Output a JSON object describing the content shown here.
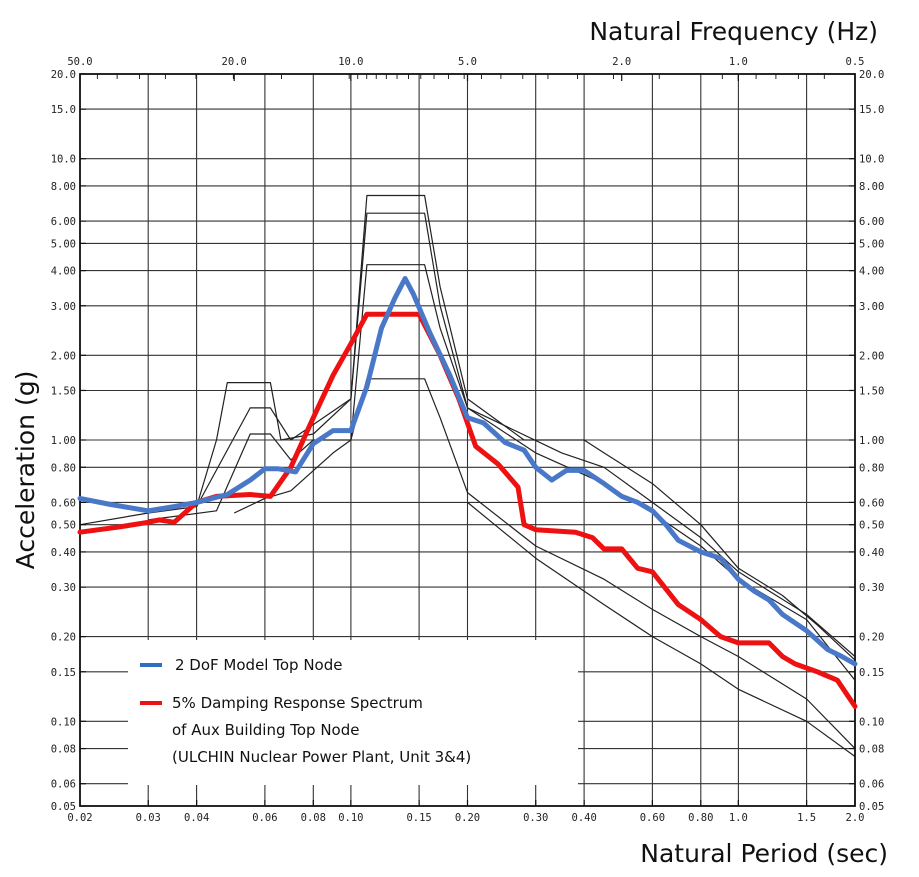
{
  "chart_data": {
    "type": "line",
    "xscale": "log",
    "yscale": "log",
    "xlabel": "Natural Period (sec)",
    "ylabel": "Acceleration (g)",
    "top_axis_label": "Natural Frequency (Hz)",
    "xlim": [
      0.02,
      2.0
    ],
    "ylim": [
      0.05,
      20.0
    ],
    "grid": true,
    "bottom_ticks": [
      {
        "v": 0.02,
        "label": "0.02"
      },
      {
        "v": 0.03,
        "label": "0.03"
      },
      {
        "v": 0.04,
        "label": "0.04"
      },
      {
        "v": 0.06,
        "label": "0.06"
      },
      {
        "v": 0.08,
        "label": "0.08"
      },
      {
        "v": 0.1,
        "label": "0.10"
      },
      {
        "v": 0.15,
        "label": "0.15"
      },
      {
        "v": 0.2,
        "label": "0.20"
      },
      {
        "v": 0.3,
        "label": "0.30"
      },
      {
        "v": 0.4,
        "label": "0.40"
      },
      {
        "v": 0.6,
        "label": "0.60"
      },
      {
        "v": 0.8,
        "label": "0.80"
      },
      {
        "v": 1.0,
        "label": "1.0"
      },
      {
        "v": 1.5,
        "label": "1.5"
      },
      {
        "v": 2.0,
        "label": "2.0"
      }
    ],
    "top_ticks": [
      {
        "v": 50.0,
        "label": "50.0"
      },
      {
        "v": 20.0,
        "label": "20.0"
      },
      {
        "v": 10.0,
        "label": "10.0"
      },
      {
        "v": 5.0,
        "label": "5.0"
      },
      {
        "v": 2.0,
        "label": "2.0"
      },
      {
        "v": 1.0,
        "label": "1.0"
      },
      {
        "v": 0.5,
        "label": "0.5"
      }
    ],
    "y_ticks": [
      {
        "v": 20.0,
        "label": "20.0"
      },
      {
        "v": 15.0,
        "label": "15.0"
      },
      {
        "v": 10.0,
        "label": "10.0"
      },
      {
        "v": 8.0,
        "label": "8.00"
      },
      {
        "v": 6.0,
        "label": "6.00"
      },
      {
        "v": 5.0,
        "label": "5.00"
      },
      {
        "v": 4.0,
        "label": "4.00"
      },
      {
        "v": 3.0,
        "label": "3.00"
      },
      {
        "v": 2.0,
        "label": "2.00"
      },
      {
        "v": 1.5,
        "label": "1.50"
      },
      {
        "v": 1.0,
        "label": "1.00"
      },
      {
        "v": 0.8,
        "label": "0.80"
      },
      {
        "v": 0.6,
        "label": "0.60"
      },
      {
        "v": 0.5,
        "label": "0.50"
      },
      {
        "v": 0.4,
        "label": "0.40"
      },
      {
        "v": 0.3,
        "label": "0.30"
      },
      {
        "v": 0.2,
        "label": "0.20"
      },
      {
        "v": 0.15,
        "label": "0.15"
      },
      {
        "v": 0.1,
        "label": "0.10"
      },
      {
        "v": 0.08,
        "label": "0.08"
      },
      {
        "v": 0.06,
        "label": "0.06"
      },
      {
        "v": 0.05,
        "label": "0.05"
      }
    ],
    "series": [
      {
        "name": "2 DoF Model Top Node",
        "color": "#4a78c8",
        "points": [
          [
            0.02,
            0.62
          ],
          [
            0.024,
            0.59
          ],
          [
            0.03,
            0.56
          ],
          [
            0.035,
            0.58
          ],
          [
            0.04,
            0.6
          ],
          [
            0.048,
            0.64
          ],
          [
            0.055,
            0.72
          ],
          [
            0.06,
            0.79
          ],
          [
            0.065,
            0.79
          ],
          [
            0.072,
            0.77
          ],
          [
            0.08,
            0.97
          ],
          [
            0.09,
            1.08
          ],
          [
            0.1,
            1.08
          ],
          [
            0.11,
            1.55
          ],
          [
            0.12,
            2.5
          ],
          [
            0.13,
            3.2
          ],
          [
            0.138,
            3.75
          ],
          [
            0.145,
            3.3
          ],
          [
            0.16,
            2.4
          ],
          [
            0.18,
            1.7
          ],
          [
            0.2,
            1.2
          ],
          [
            0.22,
            1.15
          ],
          [
            0.25,
            0.98
          ],
          [
            0.28,
            0.92
          ],
          [
            0.3,
            0.8
          ],
          [
            0.33,
            0.72
          ],
          [
            0.36,
            0.78
          ],
          [
            0.4,
            0.78
          ],
          [
            0.45,
            0.7
          ],
          [
            0.5,
            0.63
          ],
          [
            0.55,
            0.6
          ],
          [
            0.6,
            0.56
          ],
          [
            0.65,
            0.5
          ],
          [
            0.7,
            0.44
          ],
          [
            0.8,
            0.4
          ],
          [
            0.9,
            0.38
          ],
          [
            1.0,
            0.32
          ],
          [
            1.1,
            0.29
          ],
          [
            1.2,
            0.27
          ],
          [
            1.3,
            0.24
          ],
          [
            1.5,
            0.21
          ],
          [
            1.7,
            0.18
          ],
          [
            1.85,
            0.17
          ],
          [
            2.0,
            0.16
          ]
        ]
      },
      {
        "name": "5% Damping Response Spectrum of Aux Building Top Node (ULCHIN Nuclear Power Plant, Unit 3&4)",
        "color": "#ee1111",
        "points": [
          [
            0.02,
            0.47
          ],
          [
            0.025,
            0.49
          ],
          [
            0.03,
            0.51
          ],
          [
            0.032,
            0.52
          ],
          [
            0.035,
            0.51
          ],
          [
            0.04,
            0.6
          ],
          [
            0.045,
            0.63
          ],
          [
            0.055,
            0.64
          ],
          [
            0.062,
            0.63
          ],
          [
            0.07,
            0.8
          ],
          [
            0.08,
            1.2
          ],
          [
            0.09,
            1.7
          ],
          [
            0.1,
            2.2
          ],
          [
            0.11,
            2.8
          ],
          [
            0.125,
            2.8
          ],
          [
            0.15,
            2.8
          ],
          [
            0.17,
            2.0
          ],
          [
            0.19,
            1.4
          ],
          [
            0.21,
            0.95
          ],
          [
            0.24,
            0.82
          ],
          [
            0.27,
            0.68
          ],
          [
            0.28,
            0.5
          ],
          [
            0.3,
            0.48
          ],
          [
            0.38,
            0.47
          ],
          [
            0.42,
            0.45
          ],
          [
            0.45,
            0.41
          ],
          [
            0.5,
            0.41
          ],
          [
            0.55,
            0.35
          ],
          [
            0.6,
            0.34
          ],
          [
            0.7,
            0.26
          ],
          [
            0.8,
            0.23
          ],
          [
            0.9,
            0.2
          ],
          [
            1.0,
            0.19
          ],
          [
            1.2,
            0.19
          ],
          [
            1.3,
            0.17
          ],
          [
            1.4,
            0.16
          ],
          [
            1.6,
            0.15
          ],
          [
            1.8,
            0.14
          ],
          [
            2.0,
            0.113
          ]
        ]
      }
    ],
    "envelopes": [
      [
        [
          0.02,
          0.5
        ],
        [
          0.03,
          0.55
        ],
        [
          0.04,
          0.58
        ],
        [
          0.045,
          1.0
        ],
        [
          0.048,
          1.6
        ],
        [
          0.062,
          1.6
        ],
        [
          0.066,
          1.0
        ],
        [
          0.08,
          1.05
        ],
        [
          0.1,
          1.4
        ],
        [
          0.11,
          7.4
        ],
        [
          0.14,
          7.4
        ],
        [
          0.155,
          7.4
        ],
        [
          0.17,
          3.5
        ],
        [
          0.2,
          1.4
        ],
        [
          0.28,
          1.0
        ],
        [
          0.4,
          1.0
        ],
        [
          0.45,
          0.9
        ],
        [
          0.6,
          0.7
        ],
        [
          0.8,
          0.5
        ],
        [
          1.0,
          0.35
        ],
        [
          1.3,
          0.28
        ],
        [
          1.6,
          0.22
        ],
        [
          2.0,
          0.165
        ]
      ],
      [
        [
          0.04,
          0.58
        ],
        [
          0.055,
          1.3
        ],
        [
          0.062,
          1.3
        ],
        [
          0.07,
          1.0
        ],
        [
          0.1,
          1.4
        ],
        [
          0.11,
          6.4
        ],
        [
          0.155,
          6.4
        ],
        [
          0.17,
          3.0
        ],
        [
          0.2,
          1.3
        ],
        [
          0.35,
          0.9
        ],
        [
          0.45,
          0.8
        ],
        [
          0.6,
          0.6
        ],
        [
          0.8,
          0.45
        ],
        [
          1.0,
          0.34
        ],
        [
          1.5,
          0.24
        ],
        [
          2.0,
          0.17
        ]
      ],
      [
        [
          0.03,
          0.52
        ],
        [
          0.045,
          0.56
        ],
        [
          0.055,
          1.05
        ],
        [
          0.062,
          1.05
        ],
        [
          0.07,
          0.85
        ],
        [
          0.08,
          1.0
        ],
        [
          0.1,
          1.0
        ],
        [
          0.11,
          4.2
        ],
        [
          0.155,
          4.2
        ],
        [
          0.17,
          2.5
        ],
        [
          0.2,
          1.3
        ],
        [
          0.3,
          0.9
        ],
        [
          0.45,
          0.7
        ],
        [
          0.6,
          0.55
        ],
        [
          0.8,
          0.42
        ],
        [
          1.0,
          0.32
        ],
        [
          1.5,
          0.23
        ],
        [
          2.0,
          0.14
        ]
      ],
      [
        [
          0.05,
          0.55
        ],
        [
          0.06,
          0.62
        ],
        [
          0.07,
          0.66
        ],
        [
          0.09,
          0.9
        ],
        [
          0.1,
          1.0
        ],
        [
          0.11,
          1.65
        ],
        [
          0.155,
          1.65
        ],
        [
          0.17,
          1.2
        ],
        [
          0.2,
          0.65
        ],
        [
          0.3,
          0.42
        ],
        [
          0.45,
          0.32
        ],
        [
          0.6,
          0.25
        ],
        [
          0.8,
          0.2
        ],
        [
          1.0,
          0.17
        ],
        [
          1.5,
          0.12
        ],
        [
          2.0,
          0.08
        ]
      ],
      [
        [
          0.2,
          0.6
        ],
        [
          0.3,
          0.38
        ],
        [
          0.45,
          0.26
        ],
        [
          0.6,
          0.2
        ],
        [
          0.8,
          0.16
        ],
        [
          1.0,
          0.13
        ],
        [
          1.5,
          0.1
        ],
        [
          2.0,
          0.075
        ]
      ]
    ],
    "legend": [
      {
        "color": "#2f6fc0",
        "lines": [
          "2 DoF Model Top Node"
        ]
      },
      {
        "color": "#ee1111",
        "lines": [
          "5% Damping Response Spectrum",
          "of Aux Building Top Node",
          "(ULCHIN Nuclear Power Plant, Unit 3&4)"
        ]
      }
    ]
  }
}
